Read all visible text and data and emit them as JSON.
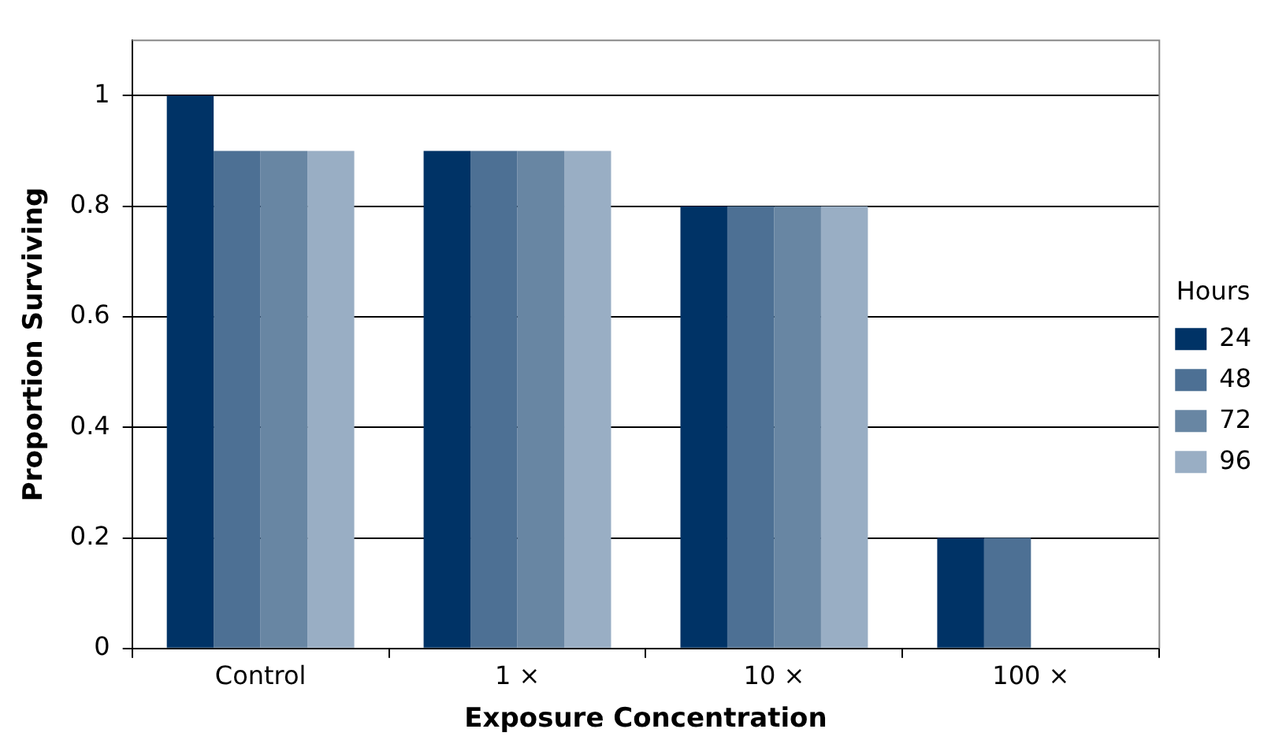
{
  "chart_data": {
    "type": "bar",
    "xlabel": "Exposure Concentration",
    "ylabel": "Proportion Surviving",
    "legend_title": "Hours",
    "categories": [
      "Control",
      "1 ×",
      "10 ×",
      "100 ×"
    ],
    "series": [
      {
        "name": "24",
        "color": "#003366",
        "values": [
          1,
          0.9,
          0.8,
          0.2
        ]
      },
      {
        "name": "48",
        "color": "#4d7094",
        "values": [
          0.9,
          0.9,
          0.8,
          0.2
        ]
      },
      {
        "name": "72",
        "color": "#6886a3",
        "values": [
          0.9,
          0.9,
          0.8,
          0
        ]
      },
      {
        "name": "96",
        "color": "#99aec4",
        "values": [
          0.9,
          0.9,
          0.8,
          0
        ]
      }
    ],
    "ylim": [
      0,
      1.1
    ],
    "yticks": [
      0,
      0.2,
      0.4,
      0.6,
      0.8,
      1
    ],
    "grid": "y",
    "legend": "right"
  }
}
